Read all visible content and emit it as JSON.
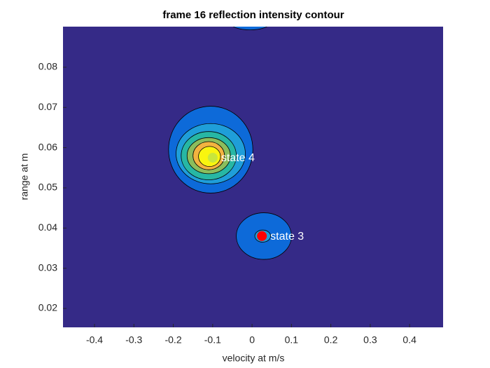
{
  "chart_data": {
    "type": "contour",
    "title": "frame 16 reflection intensity contour",
    "x_label": "velocity at m/s",
    "y_label": "range at m",
    "xlim": [
      -0.48,
      0.485
    ],
    "ylim": [
      0.0153,
      0.0901
    ],
    "xticks": [
      -0.4,
      -0.3,
      -0.2,
      -0.1,
      0,
      0.1,
      0.2,
      0.3,
      0.4
    ],
    "yticks": [
      0.02,
      0.03,
      0.04,
      0.05,
      0.06,
      0.07,
      0.08
    ],
    "background_color": "#352a87",
    "levels": [
      {
        "cx": -0.005,
        "cy": 0.091,
        "rx": 0.05,
        "ry": 0.0017,
        "color": "#0d6ad9"
      },
      {
        "cx": -0.105,
        "cy": 0.0595,
        "rx": 0.107,
        "ry": 0.0108,
        "color": "#0d6ad9"
      },
      {
        "cx": -0.105,
        "cy": 0.0585,
        "rx": 0.088,
        "ry": 0.0075,
        "color": "#1f9ed9"
      },
      {
        "cx": -0.11,
        "cy": 0.058,
        "rx": 0.07,
        "ry": 0.006,
        "color": "#27b7a4"
      },
      {
        "cx": -0.11,
        "cy": 0.058,
        "rx": 0.055,
        "ry": 0.0045,
        "color": "#8bbd5c"
      },
      {
        "cx": -0.11,
        "cy": 0.058,
        "rx": 0.04,
        "ry": 0.0035,
        "color": "#f3b340"
      },
      {
        "cx": -0.108,
        "cy": 0.0578,
        "rx": 0.028,
        "ry": 0.0025,
        "color": "#f9f50f"
      },
      {
        "cx": 0.03,
        "cy": 0.038,
        "rx": 0.07,
        "ry": 0.0058,
        "color": "#0d6ad9"
      },
      {
        "cx": 0.027,
        "cy": 0.038,
        "rx": 0.02,
        "ry": 0.0015,
        "color": "#1f9ed9"
      }
    ],
    "points": [
      {
        "label": "state 4",
        "x": -0.1,
        "y": 0.0575,
        "color": "#c8e63c"
      },
      {
        "label": "state 3",
        "x": 0.025,
        "y": 0.038,
        "color": "#ff0000"
      }
    ]
  }
}
